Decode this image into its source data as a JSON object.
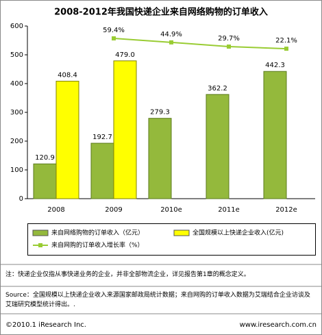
{
  "chart_data": {
    "type": "bar",
    "title": "2008-2012年我国快递企业来自网络购物的订单收入",
    "categories": [
      "2008",
      "2009",
      "2010e",
      "2011e",
      "2012e"
    ],
    "series": [
      {
        "name": "来自网络购物的订单收入（亿元）",
        "type": "bar",
        "color": "#94b93c",
        "values": [
          120.9,
          192.7,
          279.3,
          362.2,
          442.3
        ]
      },
      {
        "name": "全国规模以上快递企业收入(亿元)",
        "type": "bar",
        "color": "#ffff00",
        "values": [
          408.4,
          479,
          null,
          null,
          null
        ],
        "value_labels": [
          "408.4",
          "479.0",
          null,
          null,
          null
        ]
      },
      {
        "name": "来自网购的订单收入增长率（%）",
        "type": "line",
        "axis": "y2",
        "color": "#99cc33",
        "values": [
          null,
          59.4,
          44.9,
          29.7,
          22.1
        ],
        "value_labels": [
          null,
          "59.4%",
          "44.9%",
          "29.7%",
          "22.1%"
        ]
      }
    ],
    "ylim": [
      0,
      600
    ],
    "yticks": [
      0,
      100,
      200,
      300,
      400,
      500,
      600
    ],
    "y2lim": [
      -520,
      104
    ],
    "grid": false,
    "legend": "bottom"
  },
  "note": "注：快递企业仅指从事快递业务的企业，并非全部物流企业，详见报告第1章的概念定义。",
  "source": "Source：全国规模以上快递企业收入来源国家邮政局统计数据；来自网购的订单收入数据为艾瑞结合企业访谈及艾瑞研究模型统计得出。.",
  "footer": {
    "copyright": "©2010.1 iResearch Inc.",
    "website": "www.iresearch.com.cn"
  }
}
